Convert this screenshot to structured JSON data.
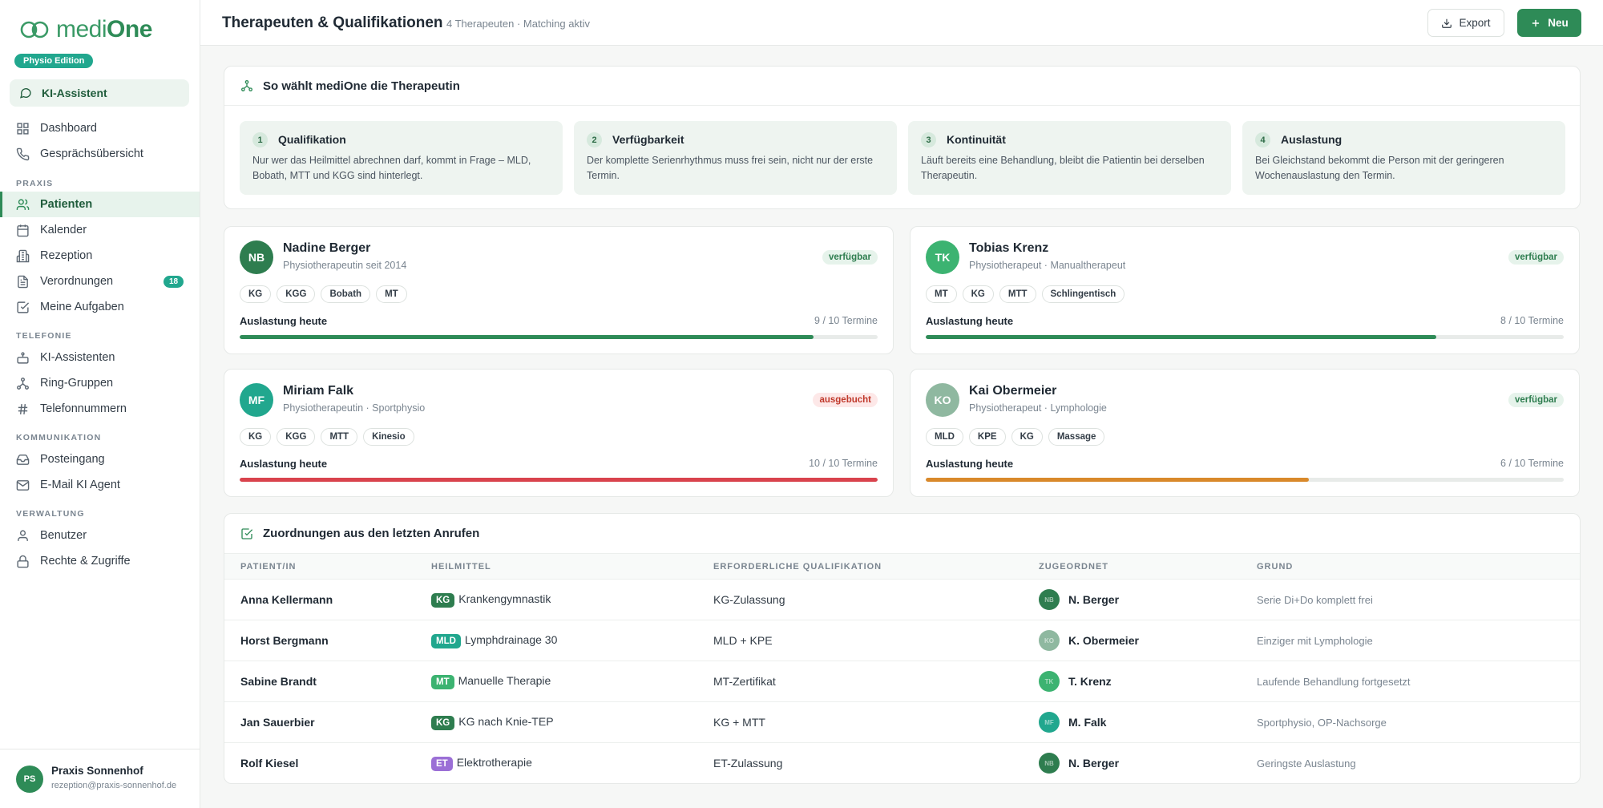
{
  "brand": {
    "logo_light": "medi",
    "logo_bold": "One",
    "edition": "Physio Edition"
  },
  "ki_button": {
    "label": "KI-Assistent"
  },
  "nav": {
    "top": [
      {
        "label": "Dashboard",
        "icon": "grid-icon"
      },
      {
        "label": "Gesprächsübersicht",
        "icon": "phone-icon"
      }
    ],
    "section_praxis": "PRAXIS",
    "praxis": [
      {
        "label": "Patienten",
        "icon": "users-icon",
        "active": true
      },
      {
        "label": "Kalender",
        "icon": "calendar-icon"
      },
      {
        "label": "Rezeption",
        "icon": "building-icon"
      },
      {
        "label": "Verordnungen",
        "icon": "document-icon",
        "badge": "18"
      },
      {
        "label": "Meine Aufgaben",
        "icon": "checkbox-icon"
      }
    ],
    "section_telefonie": "TELEFONIE",
    "telefonie": [
      {
        "label": "KI-Assistenten",
        "icon": "robot-icon"
      },
      {
        "label": "Ring-Gruppen",
        "icon": "network-icon"
      },
      {
        "label": "Telefonnummern",
        "icon": "hash-icon"
      }
    ],
    "section_kommunikation": "KOMMUNIKATION",
    "kommunikation": [
      {
        "label": "Posteingang",
        "icon": "inbox-icon"
      },
      {
        "label": "E-Mail KI Agent",
        "icon": "mail-icon"
      }
    ],
    "section_verwaltung": "VERWALTUNG",
    "verwaltung": [
      {
        "label": "Benutzer",
        "icon": "user-icon"
      },
      {
        "label": "Rechte & Zugriffe",
        "icon": "lock-icon"
      }
    ]
  },
  "profile": {
    "initials": "PS",
    "name": "Praxis Sonnenhof",
    "email": "rezeption@praxis-sonnenhof.de"
  },
  "header": {
    "title": "Therapeuten & Qualifikationen",
    "subtitle": "4 Therapeuten · Matching aktiv",
    "export_label": "Export",
    "new_label": "Neu"
  },
  "matching": {
    "title": "So wählt mediOne die Therapeutin",
    "steps": [
      {
        "num": "1",
        "title": "Qualifikation",
        "text": "Nur wer das Heilmittel abrechnen darf, kommt in Frage – MLD, Bobath, MTT und KGG sind hinterlegt."
      },
      {
        "num": "2",
        "title": "Verfügbarkeit",
        "text": "Der komplette Serienrhythmus muss frei sein, nicht nur der erste Termin."
      },
      {
        "num": "3",
        "title": "Kontinuität",
        "text": "Läuft bereits eine Behandlung, bleibt die Patientin bei derselben Therapeutin."
      },
      {
        "num": "4",
        "title": "Auslastung",
        "text": "Bei Gleichstand bekommt die Person mit der geringeren Wochenauslastung den Termin."
      }
    ]
  },
  "therapists": [
    {
      "initials": "NB",
      "name": "Nadine Berger",
      "role": "Physiotherapeutin seit 2014",
      "status": "verfügbar",
      "status_type": "ok",
      "tags": [
        "KG",
        "KGG",
        "Bobath",
        "MT"
      ],
      "load_label": "Auslastung heute",
      "load_text": "9 / 10 Termine",
      "load": 0.9,
      "color": "#2e7d4f",
      "bar_color": "#2e8b57"
    },
    {
      "initials": "TK",
      "name": "Tobias Krenz",
      "role": "Physiotherapeut · Manualtherapeut",
      "status": "verfügbar",
      "status_type": "ok",
      "tags": [
        "MT",
        "KG",
        "MTT",
        "Schlingentisch"
      ],
      "load_label": "Auslastung heute",
      "load_text": "8 / 10 Termine",
      "load": 0.8,
      "color": "#3cb371",
      "bar_color": "#2e8b57"
    },
    {
      "initials": "MF",
      "name": "Miriam Falk",
      "role": "Physiotherapeutin · Sportphysio",
      "status": "ausgebucht",
      "status_type": "full",
      "tags": [
        "KG",
        "KGG",
        "MTT",
        "Kinesio"
      ],
      "load_label": "Auslastung heute",
      "load_text": "10 / 10 Termine",
      "load": 1.0,
      "color": "#21a78e",
      "bar_color": "#d9434d"
    },
    {
      "initials": "KO",
      "name": "Kai Obermeier",
      "role": "Physiotherapeut · Lymphologie",
      "status": "verfügbar",
      "status_type": "ok",
      "tags": [
        "MLD",
        "KPE",
        "KG",
        "Massage"
      ],
      "load_label": "Auslastung heute",
      "load_text": "6 / 10 Termine",
      "load": 0.6,
      "color": "#8fb8a0",
      "bar_color": "#d9892b"
    }
  ],
  "assignments": {
    "title": "Zuordnungen aus den letzten Anrufen",
    "columns": [
      "PATIENT/IN",
      "HEILMITTEL",
      "ERFORDERLICHE QUALIFIKATION",
      "ZUGEORDNET",
      "GRUND"
    ],
    "rows": [
      {
        "patient": "Anna Kellermann",
        "badge": "KG",
        "badge_color": "#2e7d4f",
        "therapy": "Krankengymnastik",
        "qualification": "KG-Zulassung",
        "av": "NB",
        "av_color": "#2e7d4f",
        "assigned": "N. Berger",
        "reason": "Serie Di+Do komplett frei"
      },
      {
        "patient": "Horst Bergmann",
        "badge": "MLD",
        "badge_color": "#21a78e",
        "therapy": "Lymphdrainage 30",
        "qualification": "MLD + KPE",
        "av": "KO",
        "av_color": "#8fb8a0",
        "assigned": "K. Obermeier",
        "reason": "Einziger mit Lymphologie"
      },
      {
        "patient": "Sabine Brandt",
        "badge": "MT",
        "badge_color": "#3cb371",
        "therapy": "Manuelle Therapie",
        "qualification": "MT-Zertifikat",
        "av": "TK",
        "av_color": "#3cb371",
        "assigned": "T. Krenz",
        "reason": "Laufende Behandlung fortgesetzt"
      },
      {
        "patient": "Jan Sauerbier",
        "badge": "KG",
        "badge_color": "#2e7d4f",
        "therapy": "KG nach Knie-TEP",
        "qualification": "KG + MTT",
        "av": "MF",
        "av_color": "#21a78e",
        "assigned": "M. Falk",
        "reason": "Sportphysio, OP-Nachsorge"
      },
      {
        "patient": "Rolf Kiesel",
        "badge": "ET",
        "badge_color": "#9b6fd6",
        "therapy": "Elektrotherapie",
        "qualification": "ET-Zulassung",
        "av": "NB",
        "av_color": "#2e7d4f",
        "assigned": "N. Berger",
        "reason": "Geringste Auslastung"
      }
    ]
  }
}
